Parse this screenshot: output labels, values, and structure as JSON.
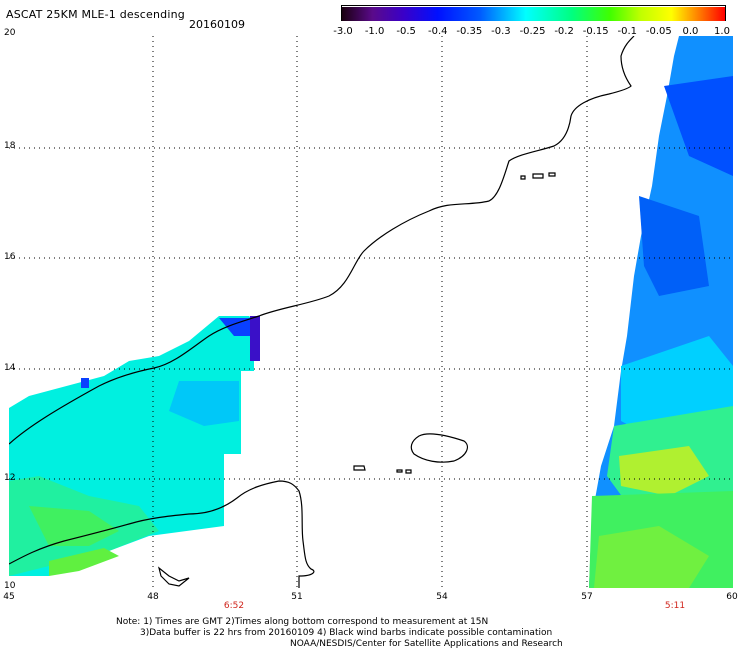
{
  "header": {
    "title": "ASCAT 25KM MLE-1 descending",
    "date": "20160109"
  },
  "colorbar": {
    "labels": [
      "-3.0",
      "-1.0",
      "-0.5",
      "-0.4",
      "-0.35",
      "-0.3",
      "-0.25",
      "-0.2",
      "-0.15",
      "-0.1",
      "-0.05",
      "0.0",
      "1.0"
    ],
    "colors": [
      "#1a0010",
      "#5a0a8a",
      "#3a00c8",
      "#0010ff",
      "#005aff",
      "#00aaff",
      "#00ffff",
      "#00ff80",
      "#40ff00",
      "#c0ff00",
      "#ffff00",
      "#ff8000",
      "#ff0000"
    ]
  },
  "axes": {
    "lat_labels": [
      "20",
      "18",
      "16",
      "14",
      "12",
      "10"
    ],
    "lon_labels": [
      "45",
      "48",
      "51",
      "54",
      "57",
      "60"
    ]
  },
  "times": {
    "left": "6:52",
    "right": "5:11"
  },
  "notes": {
    "line1": "Note: 1) Times are GMT 2)Times along bottom correspond to measurement at 15N",
    "line2": "3)Data buffer is 22 hrs from 20160109 4) Black wind barbs indicate possible contamination",
    "line3": "NOAA/NESDIS/Center for Satellite Applications and Research"
  }
}
